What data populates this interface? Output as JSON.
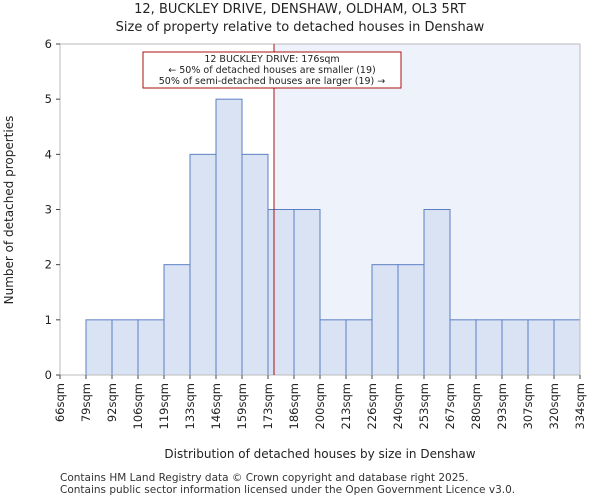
{
  "chart_data": {
    "type": "bar",
    "title": "12, BUCKLEY DRIVE, DENSHAW, OLDHAM, OL3 5RT",
    "subtitle": "Size of property relative to detached houses in Denshaw",
    "xlabel": "Distribution of detached houses by size in Denshaw",
    "ylabel": "Number of detached properties",
    "bin_edges": [
      66,
      79,
      92,
      106,
      119,
      133,
      146,
      159,
      173,
      186,
      200,
      213,
      226,
      240,
      253,
      267,
      280,
      293,
      307,
      320,
      334
    ],
    "tick_labels": [
      "66sqm",
      "79sqm",
      "92sqm",
      "106sqm",
      "119sqm",
      "133sqm",
      "146sqm",
      "159sqm",
      "173sqm",
      "186sqm",
      "200sqm",
      "213sqm",
      "226sqm",
      "240sqm",
      "253sqm",
      "267sqm",
      "280sqm",
      "293sqm",
      "307sqm",
      "320sqm",
      "334sqm"
    ],
    "values": [
      0,
      1,
      1,
      1,
      2,
      4,
      5,
      4,
      3,
      3,
      1,
      1,
      2,
      2,
      3,
      1,
      1,
      1,
      1,
      1
    ],
    "ylim": [
      0,
      6
    ],
    "yticks": [
      0,
      1,
      2,
      3,
      4,
      5,
      6
    ],
    "marker_value": 176,
    "annotation": [
      "12 BUCKLEY DRIVE: 176sqm",
      "← 50% of detached houses are smaller (19)",
      "50% of semi-detached houses are larger (19) →"
    ],
    "colors": {
      "bar_fill": "#dae3f3",
      "bar_edge": "#5b7fc4",
      "marker": "#aa1111",
      "shade": "#eef2fb"
    }
  },
  "footer": {
    "line1": "Contains HM Land Registry data © Crown copyright and database right 2025.",
    "line2": "Contains public sector information licensed under the Open Government Licence v3.0."
  }
}
